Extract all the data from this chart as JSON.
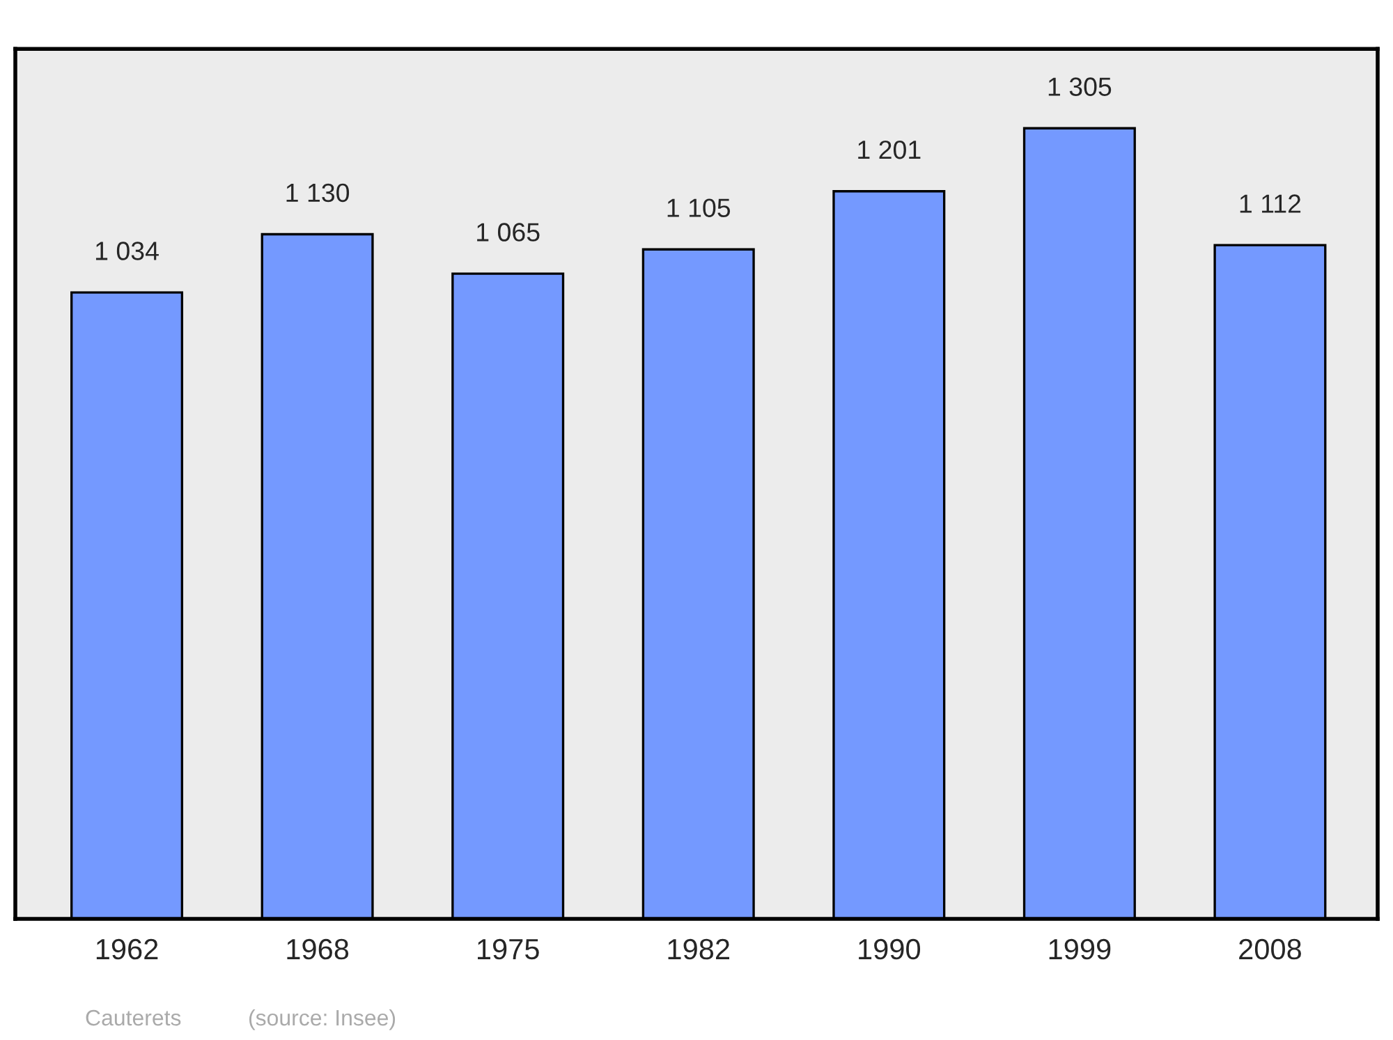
{
  "chart_data": {
    "type": "bar",
    "categories": [
      "1962",
      "1968",
      "1975",
      "1982",
      "1990",
      "1999",
      "2008"
    ],
    "values": [
      1034,
      1130,
      1065,
      1105,
      1201,
      1305,
      1112
    ],
    "value_labels": [
      "1 034",
      "1 130",
      "1 065",
      "1 105",
      "1 201",
      "1 305",
      "1 112"
    ],
    "color": "#7499ff",
    "ylim": [
      0,
      1436
    ],
    "grid": false,
    "tick_labels": "x",
    "annotations": [
      "Cauterets",
      "(source: Insee)"
    ]
  }
}
